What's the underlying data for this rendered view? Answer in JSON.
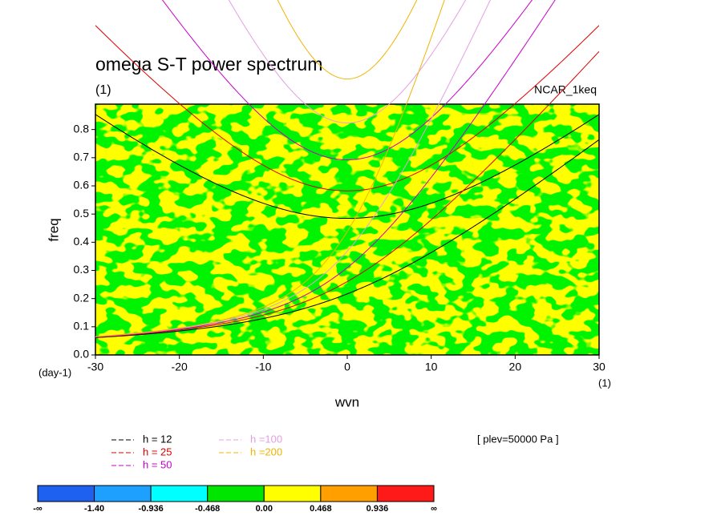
{
  "chart_data": {
    "type": "dispersion",
    "title": "omega S-T power spectrum",
    "subtitle": "(1)",
    "annotation": "NCAR_1keq",
    "x_label": "wvn",
    "y_label": "freq",
    "x_unit": "(1)",
    "y_unit": "(day-1)",
    "xlim": [
      -30,
      30
    ],
    "ylim": [
      0,
      0.89
    ],
    "xticks": [
      -30,
      -20,
      -10,
      0,
      10,
      20,
      30
    ],
    "yticks": [
      {
        "value": 0,
        "label": "0.0"
      },
      0.1,
      0.2,
      0.3,
      0.4,
      0.5,
      0.6,
      0.7,
      0.8
    ],
    "series": [
      {
        "name": "h = 12",
        "color": "#000000",
        "h": 12
      },
      {
        "name": "h = 25",
        "color": "#dd0000",
        "h": 25
      },
      {
        "name": "h = 50",
        "color": "#c800c8",
        "h": 50
      },
      {
        "name": "h =100",
        "color": "#e39fe3",
        "h": 100
      },
      {
        "name": "h =200",
        "color": "#f0b400",
        "h": 200
      }
    ],
    "note": "[ plev=50000 Pa ]",
    "field_colors": [
      "#ffff00",
      "#00e600"
    ],
    "colorbar": {
      "colors": [
        "#1e60f0",
        "#1ea0ff",
        "#00ffff",
        "#00e600",
        "#ffff00",
        "#ffa000",
        "#ff1a1a"
      ],
      "labels": [
        "-∞",
        {
          "value": -1.4,
          "label": "-1.40"
        },
        -0.936,
        -0.468,
        {
          "value": 0,
          "label": "0.00"
        },
        0.468,
        0.936,
        "∞"
      ]
    }
  }
}
